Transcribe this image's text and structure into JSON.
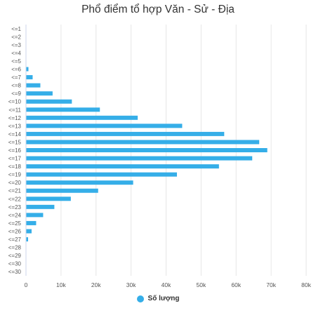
{
  "chart_data": {
    "type": "bar",
    "orientation": "horizontal",
    "title": "Phổ điểm tổ hợp Văn - Sử - Địa",
    "categories": [
      "<=1",
      "<=2",
      "<=3",
      "<=4",
      "<=5",
      "<=6",
      "<=7",
      "<=8",
      "<=9",
      "<=10",
      "<=11",
      "<=12",
      "<=13",
      "<=14",
      "<=15",
      "<=16",
      "<=17",
      "<=18",
      "<=19",
      "<=20",
      "<=21",
      "<=22",
      "<=23",
      "<=24",
      "<=25",
      "<=26",
      "<=27",
      "<=28",
      "<=29",
      "<=30",
      "<=30"
    ],
    "series": [
      {
        "name": "Số lượng",
        "values": [
          0,
          0,
          0,
          0,
          0,
          600,
          1800,
          4000,
          7500,
          13000,
          21000,
          31800,
          44500,
          56500,
          66500,
          68800,
          64500,
          55000,
          43000,
          30500,
          20500,
          12700,
          8000,
          4800,
          2800,
          1500,
          500,
          0,
          0,
          0,
          0
        ]
      }
    ],
    "xlim": [
      0,
      80000
    ],
    "x_ticks": [
      "0",
      "10k",
      "20k",
      "30k",
      "40k",
      "50k",
      "60k",
      "70k",
      "80k"
    ],
    "grid": true,
    "legend_position": "bottom",
    "bar_color": "#35aee8"
  }
}
